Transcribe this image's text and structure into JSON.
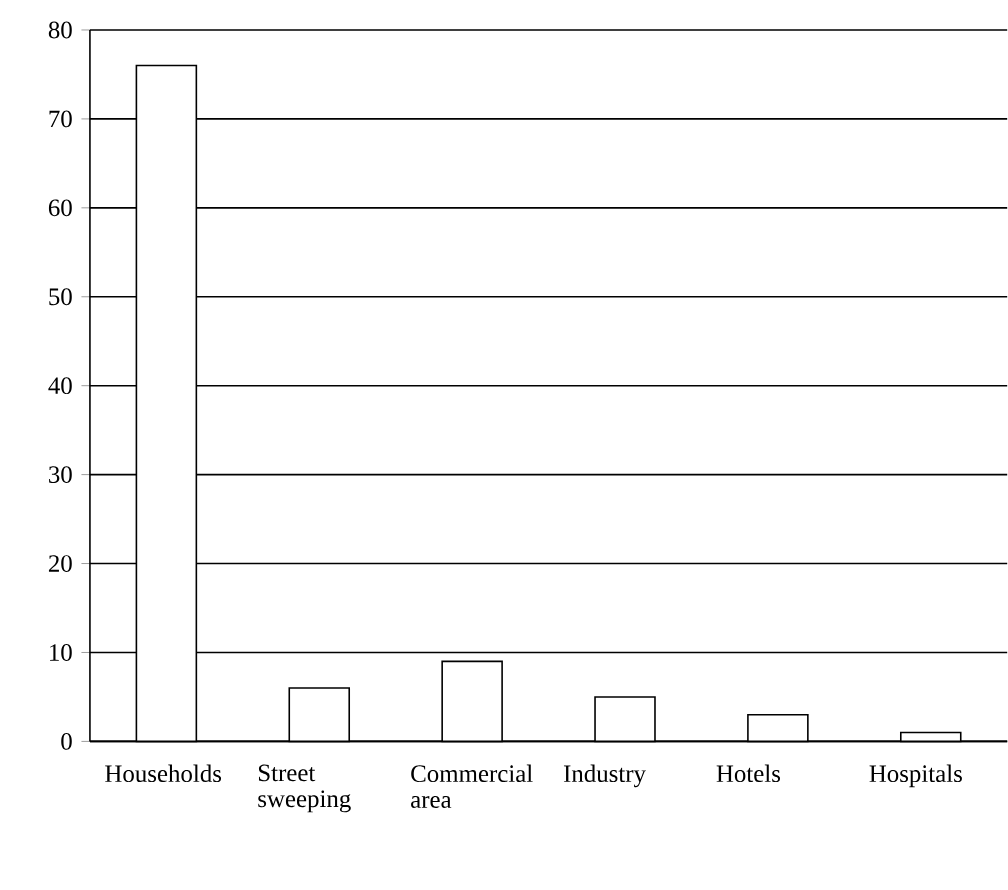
{
  "chart_data": {
    "type": "bar",
    "categories": [
      "Households",
      "Street sweeping",
      "Commercial area",
      "Industry",
      "Hotels",
      "Hospitals"
    ],
    "values": [
      76,
      6,
      9,
      5,
      3,
      1
    ],
    "color": "#ffffff",
    "ylim": [
      0,
      80
    ],
    "yticks": [
      0,
      10,
      20,
      30,
      40,
      50,
      60,
      70,
      80
    ],
    "grid": "y"
  }
}
